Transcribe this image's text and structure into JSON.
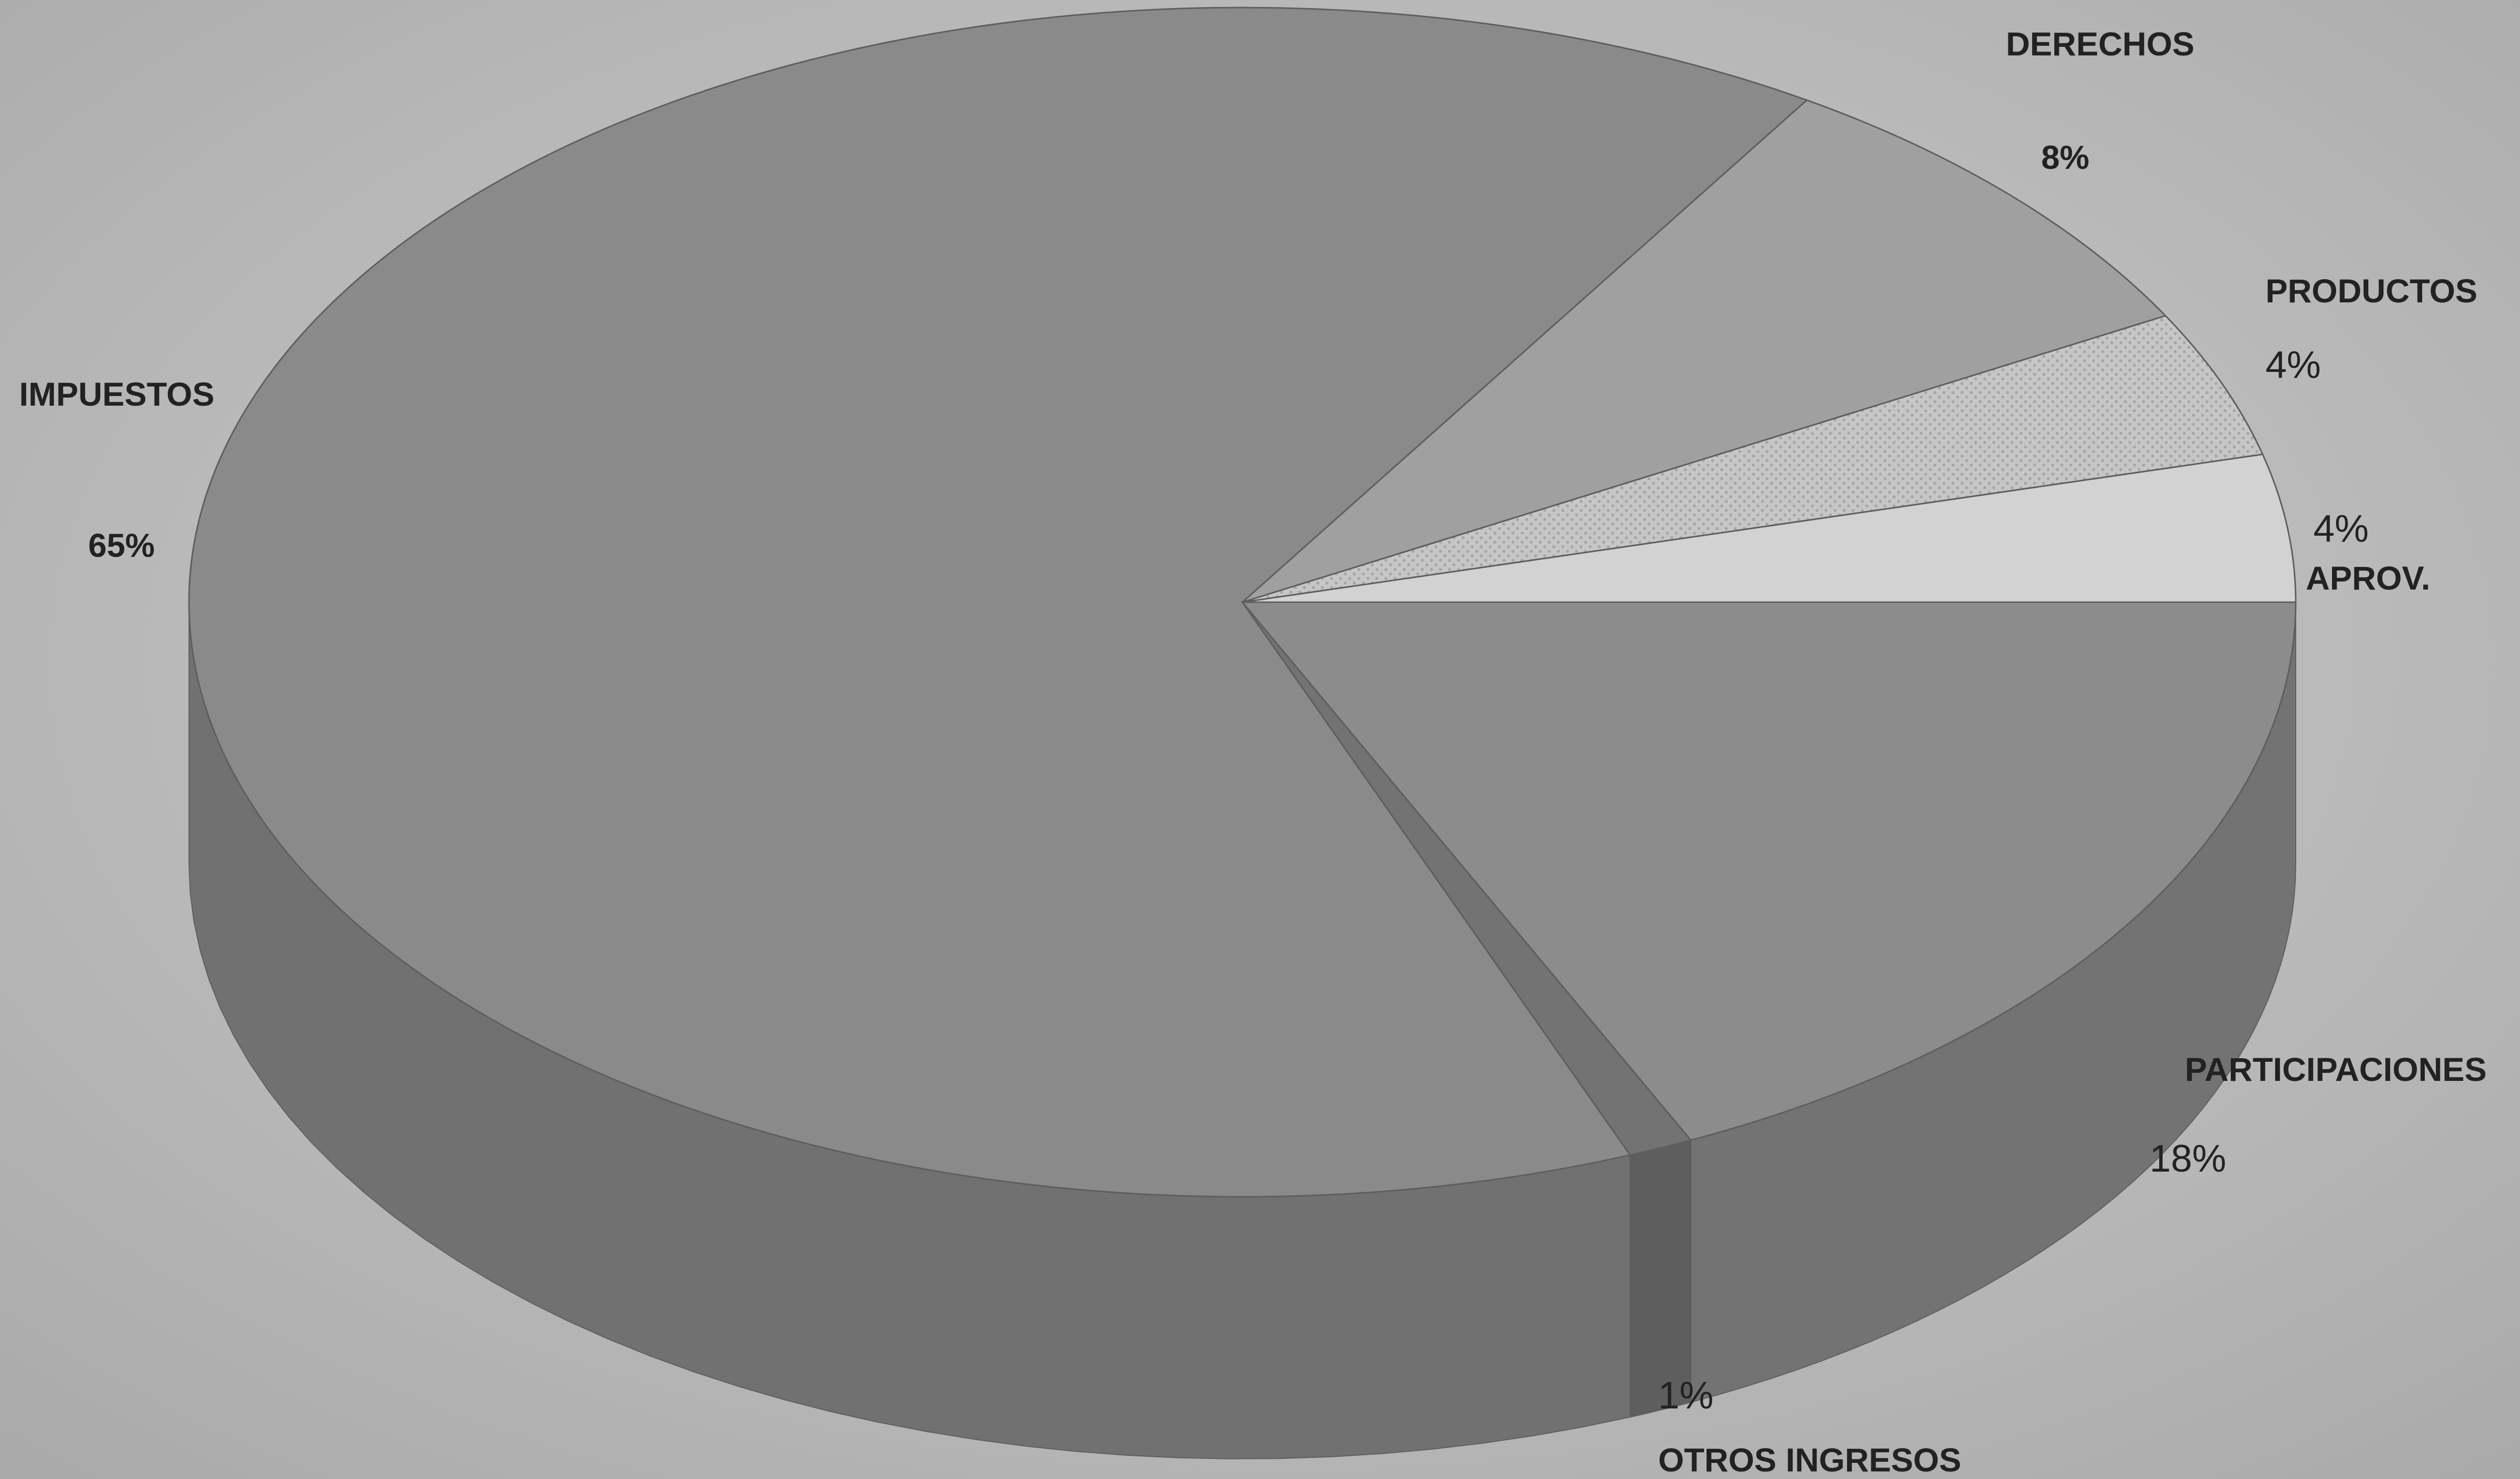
{
  "chart_data": {
    "type": "pie",
    "title": "",
    "three_d": true,
    "slices": [
      {
        "label": "IMPUESTOS",
        "value": 65,
        "pct_label": "65%",
        "color": "#8a8a8a"
      },
      {
        "label": "DERECHOS",
        "value": 8,
        "pct_label": "8%",
        "color": "#a0a0a0"
      },
      {
        "label": "PRODUCTOS",
        "value": 4,
        "pct_label": "4%",
        "color": "#c6c6c6"
      },
      {
        "label": "APROV.",
        "value": 4,
        "pct_label": "4%",
        "color": "#d2d2d2"
      },
      {
        "label": "PARTICIPACIONES",
        "value": 18,
        "pct_label": "18%",
        "color": "#8c8c8c"
      },
      {
        "label": "OTROS INGRESOS",
        "value": 1,
        "pct_label": "1%",
        "color": "#737373"
      }
    ]
  }
}
